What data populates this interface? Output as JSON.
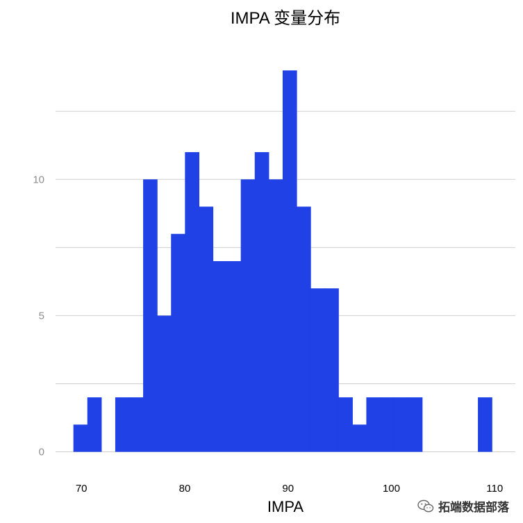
{
  "chart_data": {
    "type": "bar",
    "title": "IMPA 变量分布",
    "xlabel": "IMPA",
    "ylabel": "",
    "xlim": [
      67.5,
      112
    ],
    "ylim": [
      -0.7,
      14.8
    ],
    "bin_width": 1.35,
    "x": [
      69.9,
      71.25,
      72.6,
      73.95,
      75.3,
      76.65,
      78.0,
      79.35,
      80.7,
      82.05,
      83.4,
      84.75,
      86.1,
      87.45,
      88.8,
      90.15,
      91.5,
      92.85,
      94.2,
      95.55,
      96.9,
      98.25,
      99.6,
      100.95,
      102.3,
      103.65,
      105.0,
      106.35,
      107.7,
      109.05
    ],
    "values": [
      1,
      2,
      0,
      2,
      2,
      10,
      5,
      8,
      11,
      9,
      7,
      7,
      10,
      11,
      10,
      14,
      9,
      6,
      6,
      2,
      1,
      2,
      2,
      2,
      2,
      0,
      0,
      0,
      0,
      2
    ],
    "xticks": [
      70,
      80,
      90,
      100,
      110
    ],
    "yticks": [
      0,
      5,
      10
    ],
    "ygrid": [
      0,
      2.5,
      5,
      7.5,
      10,
      12.5
    ],
    "grid": true,
    "bar_color": "#2041e6"
  },
  "watermark": {
    "text": "拓端数据部落",
    "icon": "wechat-icon"
  }
}
